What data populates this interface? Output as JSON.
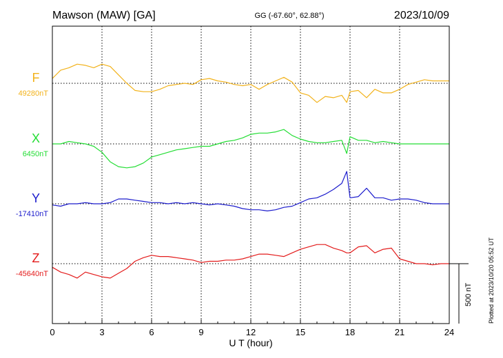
{
  "header": {
    "station": "Mawson (MAW)  [GA]",
    "coords": "GG (-67.60°,  62.88°)",
    "date": "2023/10/09"
  },
  "footer_note": "Plotted at 2023/10/20 05:52 UT",
  "chart_data": {
    "type": "line",
    "xlabel": "U T (hour)",
    "xlim": [
      0,
      24
    ],
    "x_ticks": [
      "0",
      "3",
      "6",
      "9",
      "12",
      "15",
      "18",
      "21",
      "24"
    ],
    "grid": true,
    "scale_bar": {
      "label": "500 nT",
      "value_nT": 500
    },
    "series": [
      {
        "name": "F",
        "baseline_label": "49280nT",
        "baseline_nT": 49280,
        "color": "#f2b21a",
        "x": [
          0,
          0.5,
          1,
          1.5,
          2,
          2.5,
          3,
          3.5,
          4,
          4.5,
          5,
          5.5,
          6,
          6.5,
          7,
          7.5,
          8,
          8.5,
          9,
          9.5,
          10,
          10.5,
          11,
          11.5,
          12,
          12.5,
          13,
          13.5,
          14,
          14.5,
          15,
          15.5,
          16,
          16.5,
          17,
          17.5,
          17.8,
          18,
          18.5,
          19,
          19.5,
          20,
          20.5,
          21,
          21.5,
          22,
          22.5,
          23,
          23.5,
          24
        ],
        "y": [
          49320,
          49390,
          49410,
          49440,
          49430,
          49410,
          49440,
          49420,
          49350,
          49280,
          49220,
          49210,
          49210,
          49230,
          49260,
          49270,
          49280,
          49270,
          49310,
          49320,
          49300,
          49290,
          49270,
          49260,
          49270,
          49230,
          49270,
          49300,
          49330,
          49290,
          49200,
          49180,
          49120,
          49170,
          49160,
          49180,
          49120,
          49210,
          49220,
          49160,
          49230,
          49200,
          49200,
          49230,
          49270,
          49290,
          49310,
          49300,
          49300,
          49300
        ]
      },
      {
        "name": "X",
        "baseline_label": "6450nT",
        "baseline_nT": 6450,
        "color": "#22dd33",
        "x": [
          0,
          0.5,
          1,
          1.5,
          2,
          2.5,
          3,
          3.5,
          4,
          4.5,
          5,
          5.5,
          6,
          6.5,
          7,
          7.5,
          8,
          8.5,
          9,
          9.5,
          10,
          10.5,
          11,
          11.5,
          12,
          12.5,
          13,
          13.5,
          14,
          14.5,
          15,
          15.5,
          16,
          16.5,
          17,
          17.5,
          17.8,
          18,
          18.5,
          19,
          19.5,
          20,
          20.5,
          21,
          21.5,
          22,
          22.5,
          23,
          23.5,
          24
        ],
        "y": [
          6450,
          6450,
          6470,
          6460,
          6450,
          6430,
          6380,
          6300,
          6260,
          6250,
          6260,
          6290,
          6340,
          6360,
          6380,
          6400,
          6410,
          6420,
          6430,
          6430,
          6450,
          6470,
          6480,
          6500,
          6530,
          6540,
          6540,
          6550,
          6570,
          6520,
          6490,
          6470,
          6460,
          6460,
          6470,
          6480,
          6370,
          6510,
          6480,
          6480,
          6460,
          6470,
          6460,
          6450,
          6450,
          6450,
          6450,
          6450,
          6450,
          6450
        ]
      },
      {
        "name": "Y",
        "baseline_label": "-17410nT",
        "baseline_nT": -17410,
        "color": "#1a1acc",
        "x": [
          0,
          0.5,
          1,
          1.5,
          2,
          2.5,
          3,
          3.5,
          4,
          4.5,
          5,
          5.5,
          6,
          6.5,
          7,
          7.5,
          8,
          8.5,
          9,
          9.5,
          10,
          10.5,
          11,
          11.5,
          12,
          12.5,
          13,
          13.5,
          14,
          14.5,
          15,
          15.5,
          16,
          16.5,
          17,
          17.5,
          17.8,
          18,
          18.5,
          19,
          19.5,
          20,
          20.5,
          21,
          21.5,
          22,
          22.5,
          23,
          23.5,
          24
        ],
        "y": [
          -17420,
          -17430,
          -17410,
          -17410,
          -17400,
          -17410,
          -17410,
          -17400,
          -17370,
          -17370,
          -17380,
          -17390,
          -17400,
          -17400,
          -17410,
          -17400,
          -17410,
          -17400,
          -17410,
          -17420,
          -17410,
          -17420,
          -17430,
          -17450,
          -17460,
          -17460,
          -17470,
          -17460,
          -17440,
          -17430,
          -17400,
          -17370,
          -17360,
          -17330,
          -17290,
          -17240,
          -17140,
          -17360,
          -17350,
          -17280,
          -17360,
          -17360,
          -17380,
          -17370,
          -17370,
          -17380,
          -17400,
          -17410,
          -17410,
          -17410
        ]
      },
      {
        "name": "Z",
        "baseline_label": "-45640nT",
        "baseline_nT": -45640,
        "color": "#e31a1a",
        "x": [
          0,
          0.5,
          1,
          1.5,
          2,
          2.5,
          3,
          3.5,
          4,
          4.5,
          5,
          5.5,
          6,
          6.5,
          7,
          7.5,
          8,
          8.5,
          9,
          9.5,
          10,
          10.5,
          11,
          11.5,
          12,
          12.5,
          13,
          13.5,
          14,
          14.5,
          15,
          15.5,
          16,
          16.5,
          17,
          17.5,
          17.8,
          18,
          18.5,
          19,
          19.5,
          20,
          20.5,
          21,
          21.5,
          22,
          22.5,
          23,
          23.5,
          24
        ],
        "y": [
          -45670,
          -45710,
          -45730,
          -45760,
          -45710,
          -45730,
          -45750,
          -45760,
          -45720,
          -45680,
          -45620,
          -45590,
          -45570,
          -45580,
          -45580,
          -45590,
          -45600,
          -45610,
          -45630,
          -45620,
          -45620,
          -45610,
          -45610,
          -45600,
          -45580,
          -45560,
          -45560,
          -45570,
          -45580,
          -45550,
          -45520,
          -45500,
          -45480,
          -45480,
          -45510,
          -45530,
          -45550,
          -45550,
          -45500,
          -45490,
          -45550,
          -45520,
          -45510,
          -45600,
          -45620,
          -45640,
          -45640,
          -45650,
          -45640,
          -45640
        ]
      }
    ]
  }
}
